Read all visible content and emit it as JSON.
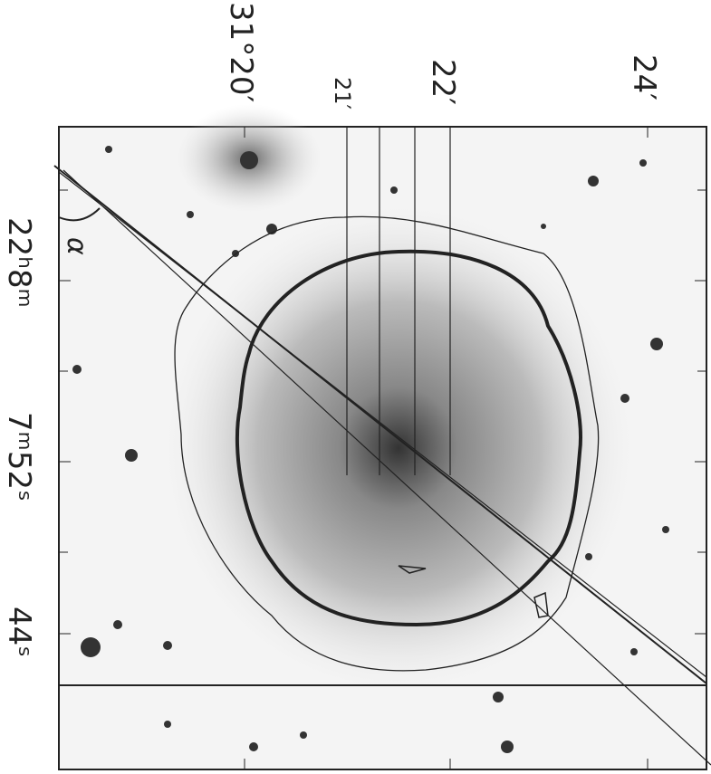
{
  "declination_labels": [
    "31°20′",
    "21′",
    "22′",
    "24′"
  ],
  "right_ascension_labels": [
    "22ʰ8ᵐ",
    "7ᵐ52ˢ",
    "44ˢ"
  ],
  "annotation": "α"
}
